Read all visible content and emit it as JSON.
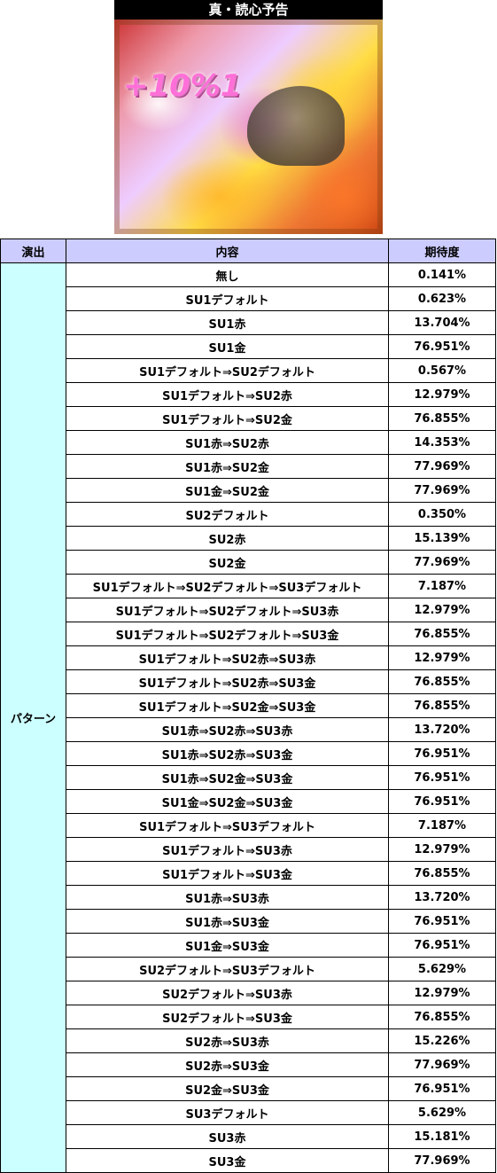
{
  "header": {
    "title": "真・読心予告"
  },
  "image": {
    "overlay_text": "+10%1"
  },
  "table": {
    "columns": [
      "演出",
      "内容",
      "期待度"
    ],
    "category": "パターン",
    "rows": [
      {
        "content": "無し",
        "rate": "0.141%"
      },
      {
        "content": "SU1デフォルト",
        "rate": "0.623%"
      },
      {
        "content": "SU1赤",
        "rate": "13.704%"
      },
      {
        "content": "SU1金",
        "rate": "76.951%"
      },
      {
        "content": "SU1デフォルト⇒SU2デフォルト",
        "rate": "0.567%"
      },
      {
        "content": "SU1デフォルト⇒SU2赤",
        "rate": "12.979%"
      },
      {
        "content": "SU1デフォルト⇒SU2金",
        "rate": "76.855%"
      },
      {
        "content": "SU1赤⇒SU2赤",
        "rate": "14.353%"
      },
      {
        "content": "SU1赤⇒SU2金",
        "rate": "77.969%"
      },
      {
        "content": "SU1金⇒SU2金",
        "rate": "77.969%"
      },
      {
        "content": "SU2デフォルト",
        "rate": "0.350%"
      },
      {
        "content": "SU2赤",
        "rate": "15.139%"
      },
      {
        "content": "SU2金",
        "rate": "77.969%"
      },
      {
        "content": "SU1デフォルト⇒SU2デフォルト⇒SU3デフォルト",
        "rate": "7.187%"
      },
      {
        "content": "SU1デフォルト⇒SU2デフォルト⇒SU3赤",
        "rate": "12.979%"
      },
      {
        "content": "SU1デフォルト⇒SU2デフォルト⇒SU3金",
        "rate": "76.855%"
      },
      {
        "content": "SU1デフォルト⇒SU2赤⇒SU3赤",
        "rate": "12.979%"
      },
      {
        "content": "SU1デフォルト⇒SU2赤⇒SU3金",
        "rate": "76.855%"
      },
      {
        "content": "SU1デフォルト⇒SU2金⇒SU3金",
        "rate": "76.855%"
      },
      {
        "content": "SU1赤⇒SU2赤⇒SU3赤",
        "rate": "13.720%"
      },
      {
        "content": "SU1赤⇒SU2赤⇒SU3金",
        "rate": "76.951%"
      },
      {
        "content": "SU1赤⇒SU2金⇒SU3金",
        "rate": "76.951%"
      },
      {
        "content": "SU1金⇒SU2金⇒SU3金",
        "rate": "76.951%"
      },
      {
        "content": "SU1デフォルト⇒SU3デフォルト",
        "rate": "7.187%"
      },
      {
        "content": "SU1デフォルト⇒SU3赤",
        "rate": "12.979%"
      },
      {
        "content": "SU1デフォルト⇒SU3金",
        "rate": "76.855%"
      },
      {
        "content": "SU1赤⇒SU3赤",
        "rate": "13.720%"
      },
      {
        "content": "SU1赤⇒SU3金",
        "rate": "76.951%"
      },
      {
        "content": "SU1金⇒SU3金",
        "rate": "76.951%"
      },
      {
        "content": "SU2デフォルト⇒SU3デフォルト",
        "rate": "5.629%"
      },
      {
        "content": "SU2デフォルト⇒SU3赤",
        "rate": "12.979%"
      },
      {
        "content": "SU2デフォルト⇒SU3金",
        "rate": "76.855%"
      },
      {
        "content": "SU2赤⇒SU3赤",
        "rate": "15.226%"
      },
      {
        "content": "SU2赤⇒SU3金",
        "rate": "77.969%"
      },
      {
        "content": "SU2金⇒SU3金",
        "rate": "76.951%"
      },
      {
        "content": "SU3デフォルト",
        "rate": "5.629%"
      },
      {
        "content": "SU3赤",
        "rate": "15.181%"
      },
      {
        "content": "SU3金",
        "rate": "77.969%"
      }
    ]
  },
  "colors": {
    "header_bg": "#ccccff",
    "category_bg": "#ccffff"
  }
}
